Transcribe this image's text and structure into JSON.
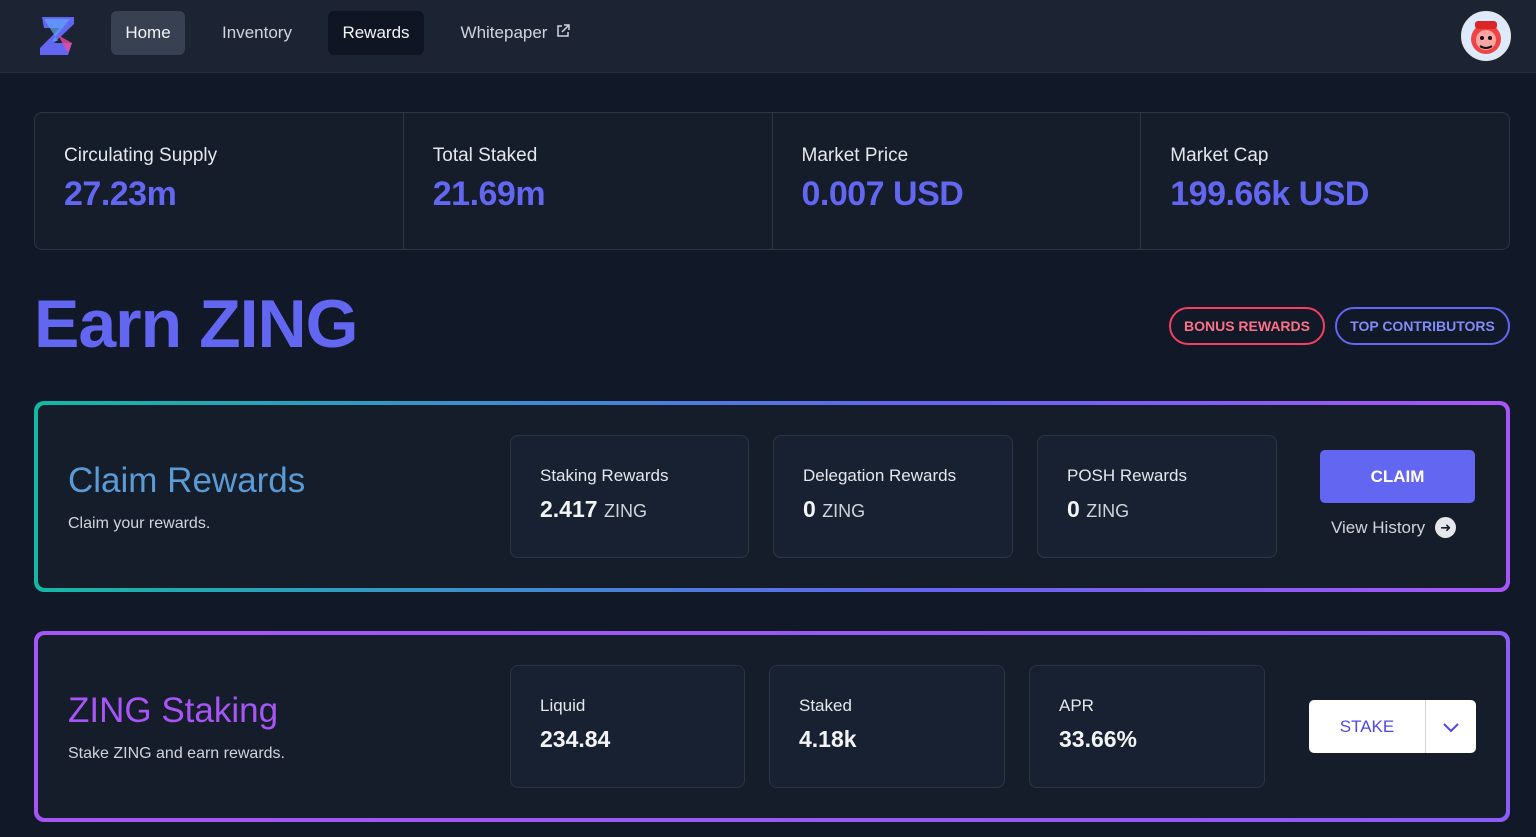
{
  "nav": {
    "items": [
      {
        "label": "Home"
      },
      {
        "label": "Inventory"
      },
      {
        "label": "Rewards"
      },
      {
        "label": "Whitepaper",
        "icon": "external-link-icon"
      }
    ]
  },
  "stats": [
    {
      "label": "Circulating Supply",
      "value": "27.23m"
    },
    {
      "label": "Total Staked",
      "value": "21.69m"
    },
    {
      "label": "Market Price",
      "value": "0.007 USD"
    },
    {
      "label": "Market Cap",
      "value": "199.66k USD"
    }
  ],
  "earn": {
    "title": "Earn ZING",
    "bonus_label": "BONUS REWARDS",
    "top_label": "TOP CONTRIBUTORS"
  },
  "claim": {
    "title": "Claim Rewards",
    "subtitle": "Claim your rewards.",
    "boxes": [
      {
        "label": "Staking Rewards",
        "value": "2.417",
        "unit": "ZING"
      },
      {
        "label": "Delegation Rewards",
        "value": "0",
        "unit": "ZING"
      },
      {
        "label": "POSH Rewards",
        "value": "0",
        "unit": "ZING"
      }
    ],
    "button": "CLAIM",
    "history": "View History"
  },
  "staking": {
    "title": "ZING Staking",
    "subtitle": "Stake ZING and earn rewards.",
    "boxes": [
      {
        "label": "Liquid",
        "value": "234.84"
      },
      {
        "label": "Staked",
        "value": "4.18k"
      },
      {
        "label": "APR",
        "value": "33.66%"
      }
    ],
    "button": "STAKE"
  },
  "colors": {
    "accent": "#6366f1",
    "bonus": "#f43f5e",
    "background": "#111827"
  }
}
